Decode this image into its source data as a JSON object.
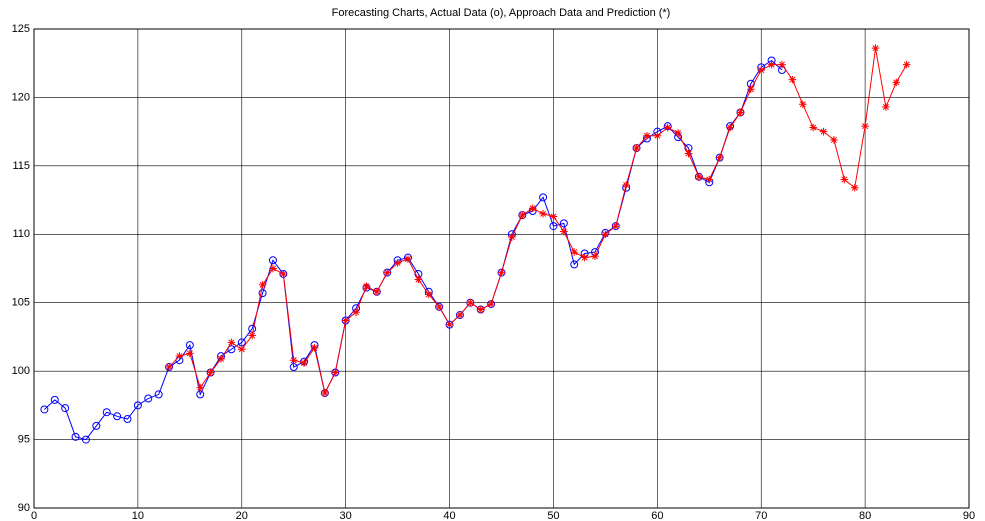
{
  "chart_data": {
    "type": "line",
    "title": "Forecasting Charts, Actual Data (o), Approach Data and Prediction (*)",
    "xlim": [
      0,
      90
    ],
    "ylim": [
      90,
      125
    ],
    "xticks": [
      0,
      10,
      20,
      30,
      40,
      50,
      60,
      70,
      80,
      90
    ],
    "yticks": [
      90,
      95,
      100,
      105,
      110,
      115,
      120,
      125
    ],
    "grid": true,
    "series": [
      {
        "color": "#0000ff",
        "marker": "circle",
        "x": [
          1,
          2,
          3,
          4,
          5,
          6,
          7,
          8,
          9,
          10,
          11,
          12,
          13,
          14,
          15,
          16,
          17,
          18,
          19,
          20,
          21,
          22,
          23,
          24,
          25,
          26,
          27,
          28,
          29,
          30,
          31,
          32,
          33,
          34,
          35,
          36,
          37,
          38,
          39,
          40,
          41,
          42,
          43,
          44,
          45,
          46,
          47,
          48,
          49,
          50,
          51,
          52,
          53,
          54,
          55,
          56,
          57,
          58,
          59,
          60,
          61,
          62,
          63,
          64,
          65,
          66,
          67,
          68,
          69,
          70,
          71,
          72
        ],
        "values": [
          97.2,
          97.9,
          97.3,
          95.2,
          95.0,
          96.0,
          97.0,
          96.7,
          96.5,
          97.5,
          98.0,
          98.3,
          100.3,
          100.8,
          101.9,
          98.3,
          99.9,
          101.1,
          101.6,
          102.1,
          103.1,
          105.7,
          108.1,
          107.1,
          100.3,
          100.7,
          101.9,
          98.4,
          99.9,
          103.7,
          104.6,
          106.1,
          105.8,
          107.2,
          108.1,
          108.3,
          107.1,
          105.8,
          104.7,
          103.4,
          104.1,
          105.0,
          104.5,
          104.9,
          107.2,
          110.0,
          111.4,
          111.7,
          112.7,
          110.6,
          110.8,
          107.8,
          108.6,
          108.7,
          110.1,
          110.6,
          113.4,
          116.3,
          117.0,
          117.5,
          117.9,
          117.1,
          116.3,
          114.2,
          113.8,
          115.6,
          117.9,
          118.9,
          121.0,
          122.2,
          122.7,
          122.0
        ]
      },
      {
        "color": "#ff0000",
        "marker": "star",
        "x": [
          13,
          14,
          15,
          16,
          17,
          18,
          19,
          20,
          21,
          22,
          23,
          24,
          25,
          26,
          27,
          28,
          29,
          30,
          31,
          32,
          33,
          34,
          35,
          36,
          37,
          38,
          39,
          40,
          41,
          42,
          43,
          44,
          45,
          46,
          47,
          48,
          49,
          50,
          51,
          52,
          53,
          54,
          55,
          56,
          57,
          58,
          59,
          60,
          61,
          62,
          63,
          64,
          65,
          66,
          67,
          68,
          69,
          70,
          71,
          72,
          73,
          74,
          75,
          76,
          77,
          78,
          79,
          80,
          81,
          82,
          83,
          84
        ],
        "values": [
          100.3,
          101.1,
          101.3,
          98.8,
          99.9,
          100.9,
          102.1,
          101.6,
          102.6,
          106.3,
          107.5,
          107.1,
          100.8,
          100.6,
          101.7,
          98.4,
          99.9,
          103.7,
          104.3,
          106.2,
          105.8,
          107.2,
          107.9,
          108.2,
          106.7,
          105.6,
          104.7,
          103.4,
          104.1,
          105.0,
          104.5,
          104.9,
          107.2,
          109.8,
          111.4,
          111.9,
          111.5,
          111.3,
          110.2,
          108.7,
          108.3,
          108.4,
          110.0,
          110.6,
          113.6,
          116.3,
          117.2,
          117.2,
          117.8,
          117.4,
          115.9,
          114.2,
          114.0,
          115.6,
          117.8,
          118.9,
          120.6,
          122.0,
          122.4,
          122.4,
          121.3,
          119.5,
          117.8,
          117.5,
          116.9,
          114.0,
          113.4,
          117.9,
          123.6,
          119.3,
          121.1,
          122.4
        ]
      }
    ]
  }
}
